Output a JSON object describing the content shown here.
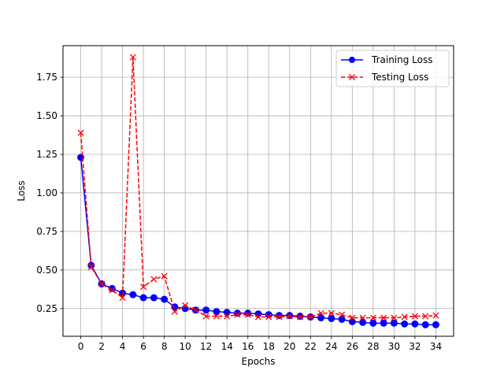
{
  "chart_data": {
    "type": "line",
    "title": "",
    "xlabel": "Epochs",
    "ylabel": "Loss",
    "xlim": [
      -1.7,
      35.7
    ],
    "ylim": [
      0.07,
      1.955
    ],
    "x_ticks": [
      0,
      2,
      4,
      6,
      8,
      10,
      12,
      14,
      16,
      18,
      20,
      22,
      24,
      26,
      28,
      30,
      32,
      34
    ],
    "y_ticks": [
      0.25,
      0.5,
      0.75,
      1.0,
      1.25,
      1.5,
      1.75
    ],
    "y_tick_labels": [
      "0.25",
      "0.50",
      "0.75",
      "1.00",
      "1.25",
      "1.50",
      "1.75"
    ],
    "grid": true,
    "legend_position": "upper-right",
    "x": [
      0,
      1,
      2,
      3,
      4,
      5,
      6,
      7,
      8,
      9,
      10,
      11,
      12,
      13,
      14,
      15,
      16,
      17,
      18,
      19,
      20,
      21,
      22,
      23,
      24,
      25,
      26,
      27,
      28,
      29,
      30,
      31,
      32,
      33,
      34
    ],
    "series": [
      {
        "name": "Training Loss",
        "color": "#0000ff",
        "line_style": "solid",
        "marker": "circle",
        "values": [
          1.23,
          0.53,
          0.41,
          0.38,
          0.35,
          0.34,
          0.32,
          0.32,
          0.31,
          0.26,
          0.25,
          0.24,
          0.24,
          0.23,
          0.225,
          0.22,
          0.22,
          0.215,
          0.21,
          0.205,
          0.205,
          0.2,
          0.195,
          0.19,
          0.185,
          0.18,
          0.165,
          0.16,
          0.155,
          0.155,
          0.155,
          0.15,
          0.15,
          0.145,
          0.145
        ]
      },
      {
        "name": "Testing Loss",
        "color": "#ff0000",
        "line_style": "dashed",
        "marker": "x",
        "values": [
          1.39,
          0.52,
          0.41,
          0.37,
          0.32,
          1.88,
          0.39,
          0.44,
          0.46,
          0.23,
          0.27,
          0.24,
          0.2,
          0.2,
          0.2,
          0.21,
          0.21,
          0.195,
          0.195,
          0.195,
          0.2,
          0.195,
          0.195,
          0.22,
          0.22,
          0.21,
          0.19,
          0.19,
          0.19,
          0.19,
          0.19,
          0.195,
          0.2,
          0.2,
          0.205
        ]
      }
    ]
  }
}
